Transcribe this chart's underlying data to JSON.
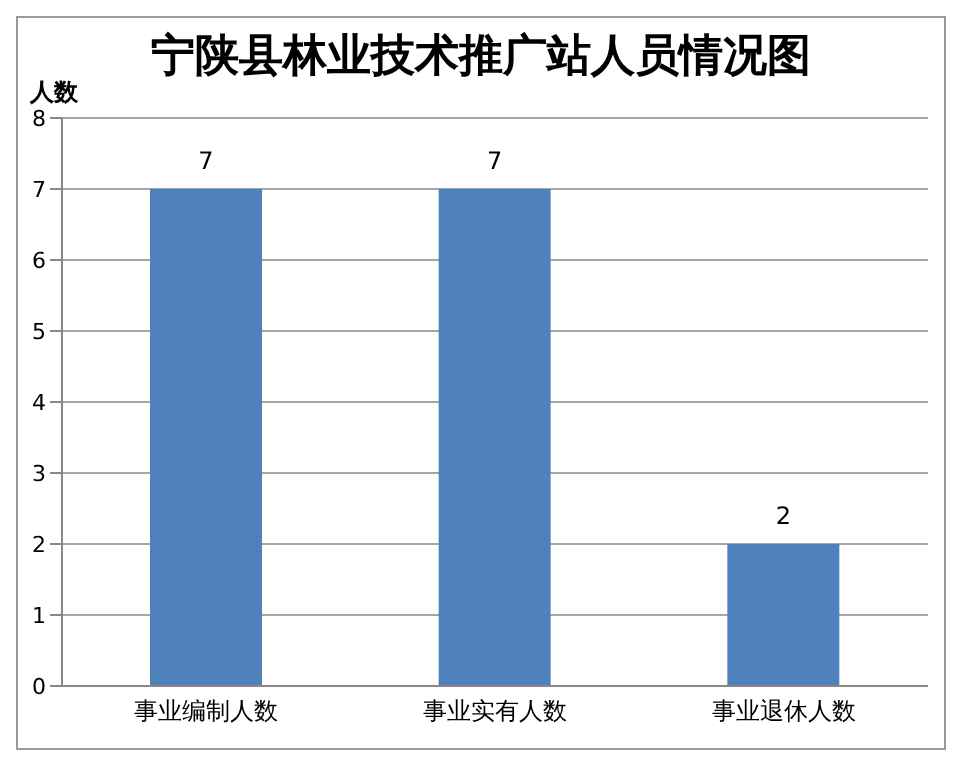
{
  "chart_data": {
    "type": "bar",
    "title": "宁陕县林业技术推广站人员情况图",
    "ylabel": "人数",
    "categories": [
      "事业编制人数",
      "事业实有人数",
      "事业退休人数"
    ],
    "values": [
      7,
      7,
      2
    ],
    "color": "#4f81bd",
    "ylim": [
      0,
      8
    ],
    "yticks": [
      0,
      1,
      2,
      3,
      4,
      5,
      6,
      7,
      8
    ],
    "grid": "y",
    "data_labels": true
  }
}
